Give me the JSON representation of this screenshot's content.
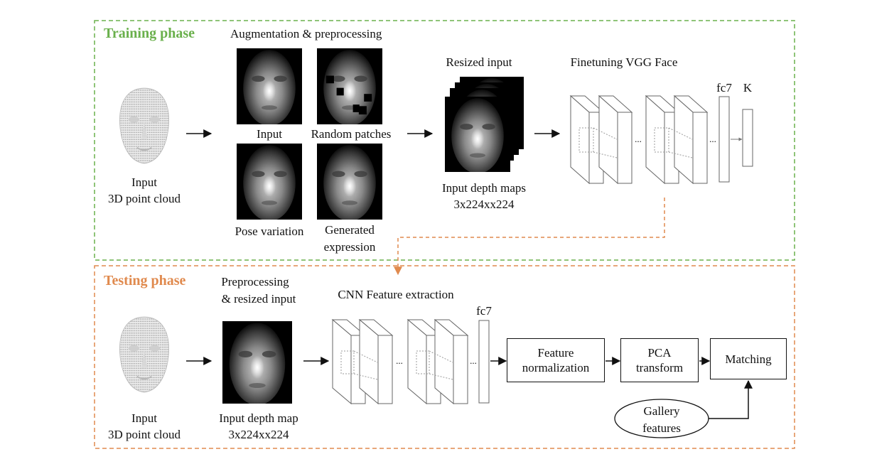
{
  "colors": {
    "training": "#6ab04c",
    "testing": "#e08a4e",
    "ink": "#111111"
  },
  "training": {
    "title": "Training phase",
    "augment_title": "Augmentation & preprocessing",
    "input_label": "Input",
    "random_label": "Random patches",
    "pose_label": "Pose variation",
    "expr_label_1": "Generated",
    "expr_label_2": "expression",
    "cloud_label_1": "Input",
    "cloud_label_2": "3D point cloud",
    "resized_title": "Resized input",
    "depth_label_1": "Input depth maps",
    "depth_label_2": "3x224xx224",
    "vgg_title": "Finetuning VGG Face",
    "fc7": "fc7",
    "k": "K",
    "dots": "..."
  },
  "testing": {
    "title": "Testing phase",
    "prep_1": "Preprocessing",
    "prep_2": "& resized input",
    "cnn_title": "CNN Feature extraction",
    "fc7": "fc7",
    "cloud_label_1": "Input",
    "cloud_label_2": "3D point cloud",
    "depth_label_1": "Input depth map",
    "depth_label_2": "3x224xx224",
    "feat_norm_1": "Feature",
    "feat_norm_2": "normalization",
    "pca_1": "PCA",
    "pca_2": "transform",
    "matching": "Matching",
    "gallery_1": "Gallery",
    "gallery_2": "features",
    "dots": "..."
  }
}
